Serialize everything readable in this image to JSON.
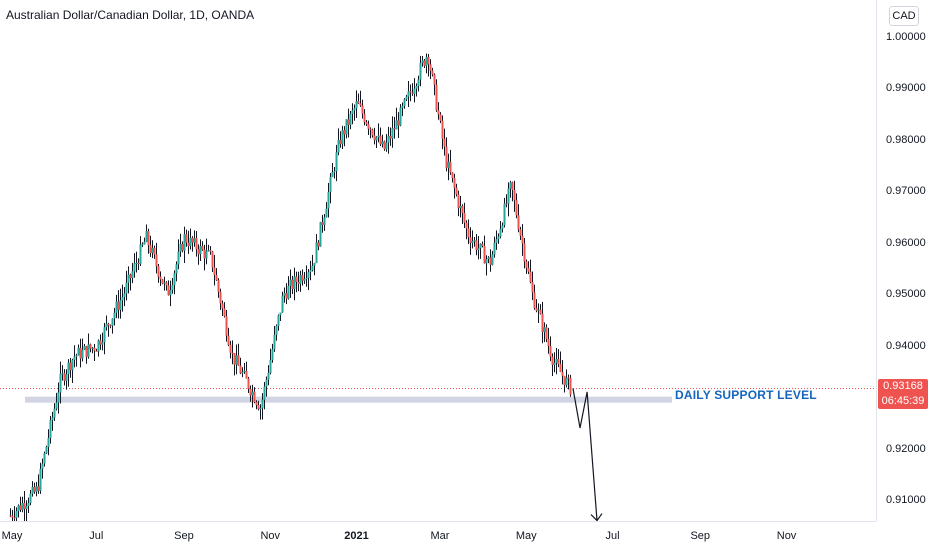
{
  "header": {
    "title": "Australian Dollar/Canadian Dollar, 1D, OANDA"
  },
  "toolbar": {
    "currency": "CAD"
  },
  "annotation": {
    "support_label": "DAILY SUPPORT LEVEL"
  },
  "last_price": {
    "value": "0.93168",
    "countdown": "06:45:39"
  },
  "colors": {
    "up": "#26a69a",
    "down": "#ef5350",
    "support_band": "#d1d4e3",
    "annotation": "#1565c0"
  },
  "chart_data": {
    "type": "candlestick",
    "title": "Australian Dollar/Canadian Dollar, 1D, OANDA",
    "y_ticks": [
      "1.00000",
      "0.99000",
      "0.98000",
      "0.97000",
      "0.96000",
      "0.95000",
      "0.94000",
      "0.92000",
      "0.91000"
    ],
    "x_ticks": [
      "May",
      "Jul",
      "Sep",
      "Nov",
      "2021",
      "Mar",
      "May",
      "Jul",
      "Sep",
      "Nov"
    ],
    "ylim": [
      0.906,
      1.008
    ],
    "support_level": 0.9295,
    "last_price": 0.93168,
    "path": [
      {
        "date": "2020-05-01",
        "price": 0.907
      },
      {
        "date": "2020-05-20",
        "price": 0.912
      },
      {
        "date": "2020-06-05",
        "price": 0.933
      },
      {
        "date": "2020-06-15",
        "price": 0.938
      },
      {
        "date": "2020-07-01",
        "price": 0.94
      },
      {
        "date": "2020-07-20",
        "price": 0.95
      },
      {
        "date": "2020-08-05",
        "price": 0.961
      },
      {
        "date": "2020-08-20",
        "price": 0.95
      },
      {
        "date": "2020-09-01",
        "price": 0.961
      },
      {
        "date": "2020-09-20",
        "price": 0.957
      },
      {
        "date": "2020-10-05",
        "price": 0.938
      },
      {
        "date": "2020-10-25",
        "price": 0.928
      },
      {
        "date": "2020-11-10",
        "price": 0.95
      },
      {
        "date": "2020-12-01",
        "price": 0.956
      },
      {
        "date": "2020-12-20",
        "price": 0.98
      },
      {
        "date": "2021-01-01",
        "price": 0.987
      },
      {
        "date": "2021-01-20",
        "price": 0.978
      },
      {
        "date": "2021-02-01",
        "price": 0.985
      },
      {
        "date": "2021-02-20",
        "price": 0.997
      },
      {
        "date": "2021-03-05",
        "price": 0.976
      },
      {
        "date": "2021-03-20",
        "price": 0.962
      },
      {
        "date": "2021-04-05",
        "price": 0.956
      },
      {
        "date": "2021-04-20",
        "price": 0.971
      },
      {
        "date": "2021-05-05",
        "price": 0.95
      },
      {
        "date": "2021-05-20",
        "price": 0.937
      },
      {
        "date": "2021-06-01",
        "price": 0.9317
      }
    ],
    "projection": [
      {
        "date": "2021-06-03",
        "price": 0.9317
      },
      {
        "date": "2021-06-08",
        "price": 0.924
      },
      {
        "date": "2021-06-13",
        "price": 0.931
      },
      {
        "date": "2021-06-20",
        "price": 0.906
      }
    ]
  }
}
